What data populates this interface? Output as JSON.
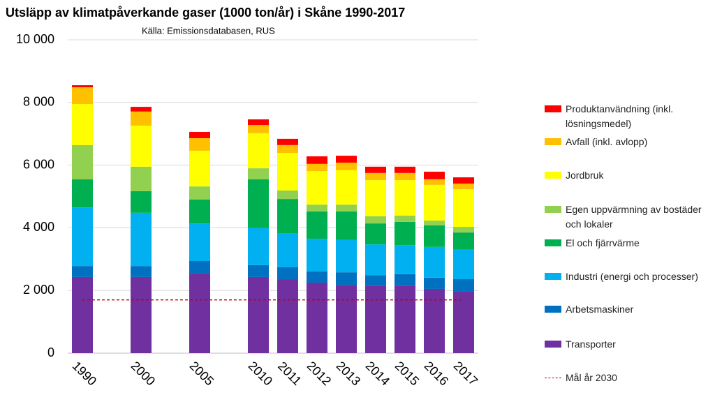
{
  "chart_data": {
    "type": "stacked-bar",
    "title": "Utsläpp av klimatpåverkande gaser (1000 ton/år) i Skåne 1990-2017",
    "subtitle": "Källa: Emissionsdatabasen,  RUS",
    "categories": [
      "1990",
      null,
      "2000",
      null,
      "2005",
      null,
      "2010",
      "2011",
      "2012",
      "2013",
      "2014",
      "2015",
      "2016",
      "2017"
    ],
    "series": [
      {
        "name": "Transporter",
        "color": "#7030a0",
        "values": [
          2430,
          null,
          2430,
          null,
          2540,
          null,
          2430,
          2360,
          2250,
          2180,
          2140,
          2140,
          2050,
          1980
        ]
      },
      {
        "name": "Arbetsmaskiner",
        "color": "#0070c0",
        "values": [
          350,
          null,
          350,
          null,
          400,
          null,
          380,
          380,
          360,
          400,
          350,
          380,
          360,
          380
        ]
      },
      {
        "name": "Industri (energi och processer)",
        "color": "#00b0f0",
        "values": [
          1870,
          null,
          1700,
          null,
          1200,
          null,
          1180,
          1090,
          1040,
          1030,
          980,
          930,
          980,
          940
        ]
      },
      {
        "name": "El och fjärrvärme",
        "color": "#00b050",
        "values": [
          895,
          null,
          690,
          null,
          760,
          null,
          1560,
          1090,
          870,
          910,
          670,
          740,
          690,
          550
        ]
      },
      {
        "name": "Egen uppvärmning av bostäder och lokaler",
        "color": "#92d050",
        "values": [
          1095,
          null,
          780,
          null,
          420,
          null,
          350,
          270,
          220,
          220,
          230,
          200,
          150,
          180
        ]
      },
      {
        "name": "Jordbruk",
        "color": "#ffff00",
        "values": [
          1310,
          null,
          1310,
          null,
          1140,
          null,
          1120,
          1200,
          1070,
          1100,
          1150,
          1130,
          1140,
          1200
        ]
      },
      {
        "name": "Avfall (inkl. avlopp)",
        "color": "#ffc000",
        "values": [
          535,
          null,
          450,
          null,
          400,
          null,
          260,
          250,
          230,
          240,
          230,
          230,
          180,
          180
        ]
      },
      {
        "name": "Produktanvändning (inkl. lösningsmedel)",
        "color": "#ff0000",
        "values": [
          65,
          null,
          150,
          null,
          200,
          null,
          180,
          200,
          240,
          220,
          200,
          200,
          240,
          200
        ]
      }
    ],
    "target": {
      "name": "Mål år 2030",
      "value": 1700,
      "color": "#c00000"
    },
    "ylim": [
      0,
      10000
    ],
    "yticks": [
      0,
      {
        "value": 2000,
        "label": "2 000"
      },
      {
        "value": 4000,
        "label": "4 000"
      },
      {
        "value": 6000,
        "label": "6 000"
      },
      {
        "value": 8000,
        "label": "8 000"
      },
      {
        "value": 10000,
        "label": "10 000"
      }
    ],
    "grid": true
  }
}
